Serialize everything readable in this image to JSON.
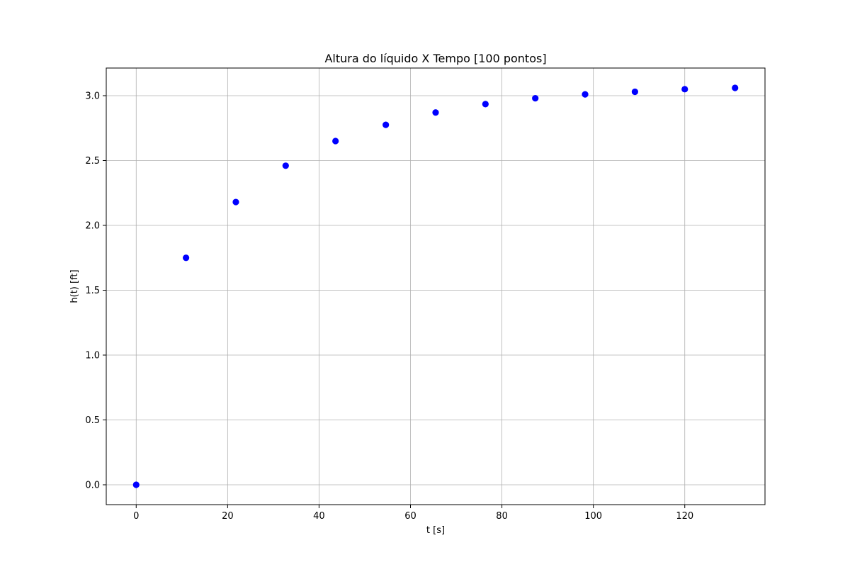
{
  "chart_data": {
    "type": "scatter",
    "title": "Altura do líquido X Tempo [100 pontos]",
    "xlabel": "t [s]",
    "ylabel": "h(t) [ft]",
    "xlim": [
      -6.55,
      137.55
    ],
    "ylim": [
      -0.153,
      3.213
    ],
    "x_ticks": [
      0,
      20,
      40,
      60,
      80,
      100,
      120
    ],
    "x_tick_labels": [
      "0",
      "20",
      "40",
      "60",
      "80",
      "100",
      "120"
    ],
    "y_ticks": [
      0.0,
      0.5,
      1.0,
      1.5,
      2.0,
      2.5,
      3.0
    ],
    "y_tick_labels": [
      "0.0",
      "0.5",
      "1.0",
      "1.5",
      "2.0",
      "2.5",
      "3.0"
    ],
    "grid": true,
    "marker_color": "#0000ff",
    "series": [
      {
        "x": [
          0,
          10.9,
          21.8,
          32.7,
          43.6,
          54.6,
          65.5,
          76.4,
          87.3,
          98.2,
          109.1,
          120.0,
          131.0
        ],
        "y": [
          0.0,
          1.75,
          2.18,
          2.46,
          2.65,
          2.775,
          2.87,
          2.935,
          2.98,
          3.01,
          3.03,
          3.05,
          3.06
        ]
      }
    ]
  }
}
